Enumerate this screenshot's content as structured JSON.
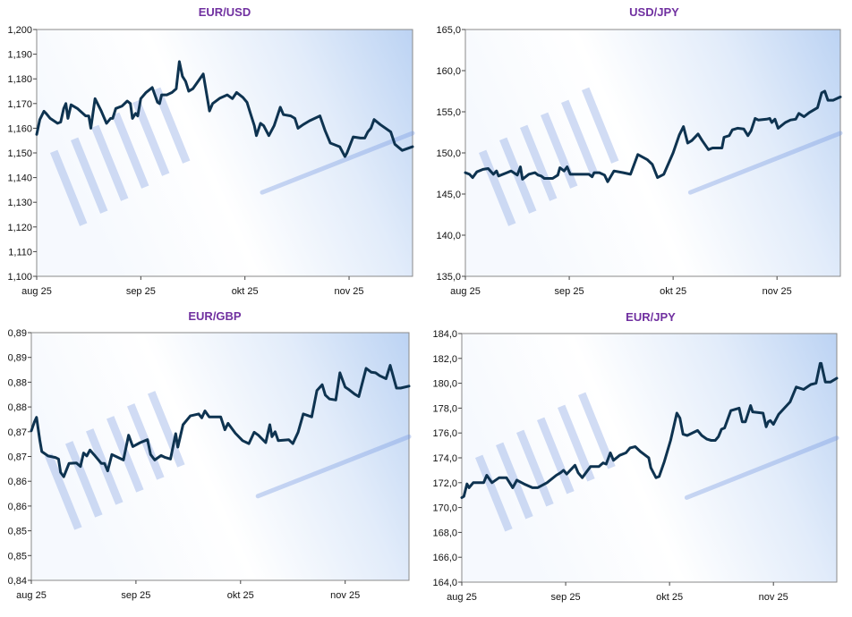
{
  "chart_data": [
    {
      "type": "line",
      "title": "EUR/USD",
      "xlabel": "",
      "ylabel": "",
      "x_unit": "months since aug 25",
      "xlim": [
        0,
        3.61
      ],
      "xticks": [
        "aug 25",
        "sep 25",
        "okt 25",
        "nov 25"
      ],
      "ylim": [
        1.1,
        1.2
      ],
      "yticks": [
        "1,100",
        "1,110",
        "1,120",
        "1,130",
        "1,140",
        "1,150",
        "1,160",
        "1,170",
        "1,180",
        "1,190",
        "1,200"
      ],
      "grid": false,
      "line_color": "#0e3350",
      "points": [
        [
          0,
          1.1575
        ],
        [
          0.03,
          1.1635
        ],
        [
          0.07,
          1.1669
        ],
        [
          0.09,
          1.166
        ],
        [
          0.13,
          1.164
        ],
        [
          0.2,
          1.162
        ],
        [
          0.23,
          1.1625
        ],
        [
          0.26,
          1.168
        ],
        [
          0.28,
          1.17
        ],
        [
          0.3,
          1.164
        ],
        [
          0.33,
          1.1695
        ],
        [
          0.39,
          1.168
        ],
        [
          0.47,
          1.165
        ],
        [
          0.5,
          1.165
        ],
        [
          0.52,
          1.16
        ],
        [
          0.56,
          1.172
        ],
        [
          0.62,
          1.167
        ],
        [
          0.67,
          1.162
        ],
        [
          0.71,
          1.164
        ],
        [
          0.73,
          1.164
        ],
        [
          0.76,
          1.168
        ],
        [
          0.82,
          1.169
        ],
        [
          0.87,
          1.171
        ],
        [
          0.9,
          1.17
        ],
        [
          0.92,
          1.164
        ],
        [
          0.95,
          1.166
        ],
        [
          0.97,
          1.165
        ],
        [
          1.0,
          1.172
        ],
        [
          1.05,
          1.1745
        ],
        [
          1.11,
          1.1765
        ],
        [
          1.16,
          1.1705
        ],
        [
          1.18,
          1.17
        ],
        [
          1.2,
          1.1735
        ],
        [
          1.25,
          1.1735
        ],
        [
          1.3,
          1.1745
        ],
        [
          1.34,
          1.176
        ],
        [
          1.37,
          1.187
        ],
        [
          1.4,
          1.181
        ],
        [
          1.43,
          1.179
        ],
        [
          1.46,
          1.175
        ],
        [
          1.5,
          1.176
        ],
        [
          1.6,
          1.182
        ],
        [
          1.66,
          1.167
        ],
        [
          1.69,
          1.17
        ],
        [
          1.76,
          1.1722
        ],
        [
          1.83,
          1.1735
        ],
        [
          1.88,
          1.172
        ],
        [
          1.92,
          1.1745
        ],
        [
          1.98,
          1.1725
        ],
        [
          2.02,
          1.1705
        ],
        [
          2.06,
          1.165
        ],
        [
          2.09,
          1.161
        ],
        [
          2.11,
          1.157
        ],
        [
          2.15,
          1.162
        ],
        [
          2.18,
          1.161
        ],
        [
          2.23,
          1.157
        ],
        [
          2.28,
          1.161
        ],
        [
          2.34,
          1.1685
        ],
        [
          2.37,
          1.1655
        ],
        [
          2.44,
          1.165
        ],
        [
          2.48,
          1.164
        ],
        [
          2.51,
          1.16
        ],
        [
          2.56,
          1.1615
        ],
        [
          2.62,
          1.163
        ],
        [
          2.72,
          1.165
        ],
        [
          2.77,
          1.159
        ],
        [
          2.82,
          1.154
        ],
        [
          2.91,
          1.1525
        ],
        [
          2.96,
          1.1485
        ],
        [
          2.98,
          1.15
        ],
        [
          3.04,
          1.1565
        ],
        [
          3.11,
          1.156
        ],
        [
          3.15,
          1.156
        ],
        [
          3.18,
          1.1585
        ],
        [
          3.21,
          1.16
        ],
        [
          3.24,
          1.1635
        ],
        [
          3.3,
          1.1615
        ],
        [
          3.4,
          1.1585
        ],
        [
          3.44,
          1.1535
        ],
        [
          3.51,
          1.151
        ],
        [
          3.61,
          1.1525
        ]
      ]
    },
    {
      "type": "line",
      "title": "USD/JPY",
      "xlabel": "",
      "ylabel": "",
      "x_unit": "months since aug 25",
      "xlim": [
        0,
        3.61
      ],
      "xticks": [
        "aug 25",
        "sep 25",
        "okt 25",
        "nov 25"
      ],
      "ylim": [
        135,
        165
      ],
      "yticks": [
        "135,0",
        "140,0",
        "145,0",
        "150,0",
        "155,0",
        "160,0",
        "165,0"
      ],
      "grid": false,
      "line_color": "#0e3350",
      "points": [
        [
          0,
          147.6
        ],
        [
          0.04,
          147.4
        ],
        [
          0.07,
          147.0
        ],
        [
          0.11,
          147.7
        ],
        [
          0.17,
          148.0
        ],
        [
          0.22,
          148.1
        ],
        [
          0.27,
          147.4
        ],
        [
          0.3,
          147.8
        ],
        [
          0.32,
          147.2
        ],
        [
          0.4,
          147.6
        ],
        [
          0.44,
          147.8
        ],
        [
          0.5,
          147.3
        ],
        [
          0.53,
          148.3
        ],
        [
          0.55,
          146.8
        ],
        [
          0.61,
          147.4
        ],
        [
          0.67,
          147.6
        ],
        [
          0.7,
          147.3
        ],
        [
          0.73,
          147.2
        ],
        [
          0.76,
          146.9
        ],
        [
          0.84,
          146.9
        ],
        [
          0.89,
          147.3
        ],
        [
          0.91,
          148.2
        ],
        [
          0.95,
          147.8
        ],
        [
          0.98,
          148.3
        ],
        [
          1.01,
          147.4
        ],
        [
          1.09,
          147.4
        ],
        [
          1.19,
          147.4
        ],
        [
          1.22,
          147.1
        ],
        [
          1.24,
          147.6
        ],
        [
          1.29,
          147.6
        ],
        [
          1.34,
          147.3
        ],
        [
          1.37,
          146.5
        ],
        [
          1.43,
          147.8
        ],
        [
          1.52,
          147.6
        ],
        [
          1.59,
          147.4
        ],
        [
          1.66,
          149.8
        ],
        [
          1.75,
          149.2
        ],
        [
          1.8,
          148.6
        ],
        [
          1.85,
          147.0
        ],
        [
          1.91,
          147.4
        ],
        [
          2.0,
          150.0
        ],
        [
          2.06,
          152.2
        ],
        [
          2.1,
          153.2
        ],
        [
          2.14,
          151.2
        ],
        [
          2.18,
          151.5
        ],
        [
          2.24,
          152.3
        ],
        [
          2.28,
          151.5
        ],
        [
          2.34,
          150.4
        ],
        [
          2.38,
          150.6
        ],
        [
          2.47,
          150.6
        ],
        [
          2.49,
          151.9
        ],
        [
          2.54,
          152.1
        ],
        [
          2.57,
          152.8
        ],
        [
          2.62,
          153.0
        ],
        [
          2.68,
          152.9
        ],
        [
          2.72,
          152.1
        ],
        [
          2.75,
          152.7
        ],
        [
          2.79,
          154.2
        ],
        [
          2.82,
          154.0
        ],
        [
          2.9,
          154.1
        ],
        [
          2.93,
          154.2
        ],
        [
          2.95,
          153.7
        ],
        [
          2.98,
          154.1
        ],
        [
          3.01,
          153.0
        ],
        [
          3.08,
          153.7
        ],
        [
          3.13,
          154.0
        ],
        [
          3.18,
          154.1
        ],
        [
          3.21,
          154.8
        ],
        [
          3.26,
          154.4
        ],
        [
          3.31,
          154.9
        ],
        [
          3.39,
          155.5
        ],
        [
          3.43,
          157.3
        ],
        [
          3.46,
          157.5
        ],
        [
          3.49,
          156.4
        ],
        [
          3.54,
          156.4
        ],
        [
          3.61,
          156.8
        ]
      ]
    },
    {
      "type": "line",
      "title": "EUR/GBP",
      "xlabel": "",
      "ylabel": "",
      "x_unit": "months since aug 25",
      "xlim": [
        0,
        3.61
      ],
      "xticks": [
        "aug 25",
        "sep 25",
        "okt 25",
        "nov 25"
      ],
      "ylim": [
        0.84,
        0.89
      ],
      "yticks": [
        "0,84",
        "0,85",
        "0,85",
        "0,86",
        "0,86",
        "0,87",
        "0,87",
        "0,88",
        "0,88",
        "0,89",
        "0,89"
      ],
      "grid": false,
      "line_color": "#0e3350",
      "points": [
        [
          0,
          0.8702
        ],
        [
          0.03,
          0.872
        ],
        [
          0.05,
          0.8729
        ],
        [
          0.08,
          0.8684
        ],
        [
          0.1,
          0.866
        ],
        [
          0.16,
          0.8651
        ],
        [
          0.23,
          0.8648
        ],
        [
          0.26,
          0.8645
        ],
        [
          0.28,
          0.8618
        ],
        [
          0.31,
          0.8609
        ],
        [
          0.36,
          0.8636
        ],
        [
          0.43,
          0.8637
        ],
        [
          0.47,
          0.863
        ],
        [
          0.5,
          0.8657
        ],
        [
          0.53,
          0.8651
        ],
        [
          0.56,
          0.8663
        ],
        [
          0.61,
          0.8651
        ],
        [
          0.67,
          0.8636
        ],
        [
          0.7,
          0.8636
        ],
        [
          0.73,
          0.8621
        ],
        [
          0.77,
          0.8654
        ],
        [
          0.83,
          0.8648
        ],
        [
          0.88,
          0.8643
        ],
        [
          0.93,
          0.8693
        ],
        [
          0.97,
          0.867
        ],
        [
          1.04,
          0.8678
        ],
        [
          1.11,
          0.8684
        ],
        [
          1.14,
          0.8654
        ],
        [
          1.18,
          0.8643
        ],
        [
          1.24,
          0.8652
        ],
        [
          1.28,
          0.8648
        ],
        [
          1.33,
          0.8645
        ],
        [
          1.38,
          0.8696
        ],
        [
          1.4,
          0.8669
        ],
        [
          1.45,
          0.8714
        ],
        [
          1.52,
          0.8732
        ],
        [
          1.6,
          0.8736
        ],
        [
          1.63,
          0.8728
        ],
        [
          1.66,
          0.8742
        ],
        [
          1.7,
          0.873
        ],
        [
          1.81,
          0.873
        ],
        [
          1.85,
          0.8704
        ],
        [
          1.88,
          0.8717
        ],
        [
          1.95,
          0.8697
        ],
        [
          2.02,
          0.8682
        ],
        [
          2.08,
          0.8676
        ],
        [
          2.13,
          0.8699
        ],
        [
          2.17,
          0.8693
        ],
        [
          2.24,
          0.8678
        ],
        [
          2.28,
          0.8714
        ],
        [
          2.3,
          0.869
        ],
        [
          2.33,
          0.87
        ],
        [
          2.36,
          0.8682
        ],
        [
          2.46,
          0.8684
        ],
        [
          2.5,
          0.8676
        ],
        [
          2.55,
          0.8699
        ],
        [
          2.6,
          0.8736
        ],
        [
          2.68,
          0.873
        ],
        [
          2.73,
          0.8783
        ],
        [
          2.78,
          0.8795
        ],
        [
          2.81,
          0.8774
        ],
        [
          2.85,
          0.8766
        ],
        [
          2.91,
          0.8764
        ],
        [
          2.95,
          0.8819
        ],
        [
          3.0,
          0.879
        ],
        [
          3.03,
          0.8786
        ],
        [
          3.09,
          0.8776
        ],
        [
          3.13,
          0.8771
        ],
        [
          3.2,
          0.8828
        ],
        [
          3.25,
          0.882
        ],
        [
          3.29,
          0.8819
        ],
        [
          3.33,
          0.8813
        ],
        [
          3.39,
          0.8807
        ],
        [
          3.43,
          0.8834
        ],
        [
          3.49,
          0.8788
        ],
        [
          3.53,
          0.8788
        ],
        [
          3.61,
          0.8792
        ]
      ]
    },
    {
      "type": "line",
      "title": "EUR/JPY",
      "xlabel": "",
      "ylabel": "",
      "x_unit": "months since aug 25",
      "xlim": [
        0,
        3.61
      ],
      "xticks": [
        "aug 25",
        "sep 25",
        "okt 25",
        "nov 25"
      ],
      "ylim": [
        164,
        184
      ],
      "yticks": [
        "164,0",
        "166,0",
        "168,0",
        "170,0",
        "172,0",
        "174,0",
        "176,0",
        "178,0",
        "180,0",
        "182,0",
        "184,0"
      ],
      "grid": false,
      "line_color": "#0e3350",
      "points": [
        [
          0,
          170.8
        ],
        [
          0.02,
          170.9
        ],
        [
          0.05,
          171.9
        ],
        [
          0.07,
          171.6
        ],
        [
          0.11,
          172.0
        ],
        [
          0.16,
          172.0
        ],
        [
          0.21,
          172.0
        ],
        [
          0.24,
          172.6
        ],
        [
          0.29,
          172.0
        ],
        [
          0.36,
          172.4
        ],
        [
          0.43,
          172.4
        ],
        [
          0.49,
          171.6
        ],
        [
          0.53,
          172.2
        ],
        [
          0.6,
          171.9
        ],
        [
          0.68,
          171.6
        ],
        [
          0.73,
          171.6
        ],
        [
          0.82,
          172.0
        ],
        [
          0.91,
          172.6
        ],
        [
          0.95,
          172.8
        ],
        [
          0.98,
          173.0
        ],
        [
          1.01,
          172.7
        ],
        [
          1.09,
          173.4
        ],
        [
          1.12,
          172.8
        ],
        [
          1.16,
          172.4
        ],
        [
          1.24,
          173.3
        ],
        [
          1.32,
          173.3
        ],
        [
          1.36,
          173.6
        ],
        [
          1.39,
          173.5
        ],
        [
          1.43,
          174.4
        ],
        [
          1.46,
          173.8
        ],
        [
          1.52,
          174.2
        ],
        [
          1.58,
          174.4
        ],
        [
          1.62,
          174.8
        ],
        [
          1.67,
          174.9
        ],
        [
          1.72,
          174.5
        ],
        [
          1.8,
          174.0
        ],
        [
          1.82,
          173.2
        ],
        [
          1.87,
          172.4
        ],
        [
          1.9,
          172.5
        ],
        [
          1.95,
          173.7
        ],
        [
          2.01,
          175.4
        ],
        [
          2.07,
          177.6
        ],
        [
          2.1,
          177.2
        ],
        [
          2.13,
          175.9
        ],
        [
          2.17,
          175.8
        ],
        [
          2.27,
          176.2
        ],
        [
          2.31,
          175.8
        ],
        [
          2.36,
          175.5
        ],
        [
          2.4,
          175.4
        ],
        [
          2.44,
          175.4
        ],
        [
          2.47,
          175.7
        ],
        [
          2.5,
          176.3
        ],
        [
          2.53,
          176.4
        ],
        [
          2.59,
          177.8
        ],
        [
          2.67,
          178.0
        ],
        [
          2.7,
          176.9
        ],
        [
          2.73,
          176.9
        ],
        [
          2.78,
          178.2
        ],
        [
          2.8,
          177.7
        ],
        [
          2.9,
          177.6
        ],
        [
          2.93,
          176.5
        ],
        [
          2.95,
          176.9
        ],
        [
          2.97,
          177.0
        ],
        [
          3.0,
          176.7
        ],
        [
          3.05,
          177.5
        ],
        [
          3.16,
          178.5
        ],
        [
          3.22,
          179.7
        ],
        [
          3.29,
          179.5
        ],
        [
          3.36,
          179.9
        ],
        [
          3.41,
          180.0
        ],
        [
          3.45,
          181.6
        ],
        [
          3.46,
          181.6
        ],
        [
          3.5,
          180.1
        ],
        [
          3.55,
          180.1
        ],
        [
          3.61,
          180.4
        ]
      ]
    }
  ]
}
